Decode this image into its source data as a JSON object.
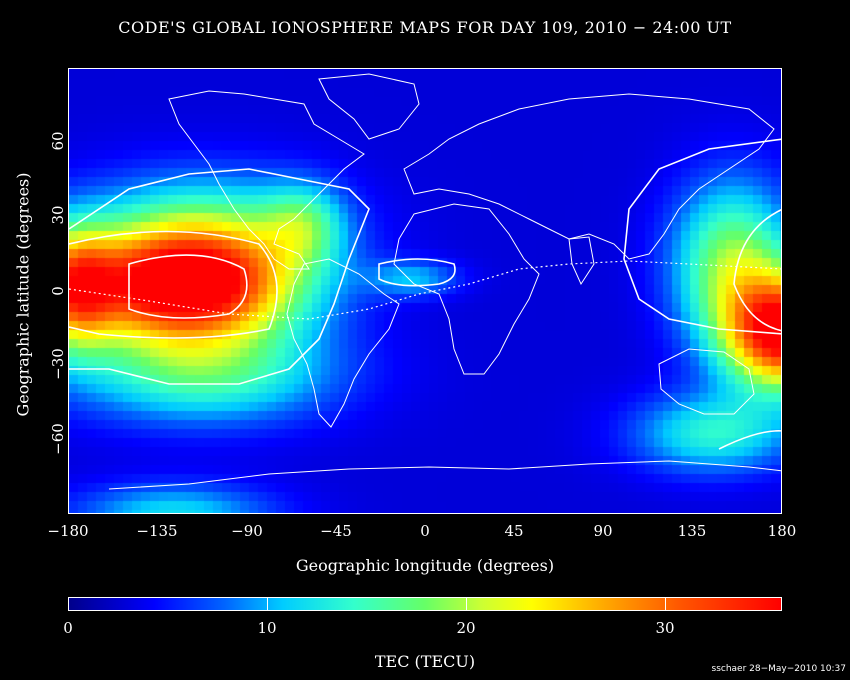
{
  "title": "CODE'S GLOBAL IONOSPHERE MAPS FOR DAY 109, 2010 − 24:00 UT",
  "x_axis": {
    "label": "Geographic longitude (degrees)",
    "ticks": [
      "−180",
      "−135",
      "−90",
      "−45",
      "0",
      "45",
      "90",
      "135",
      "180"
    ],
    "range": [
      -180,
      180
    ]
  },
  "y_axis": {
    "label": "Geographic latitude (degrees)",
    "ticks": [
      "60",
      "30",
      "0",
      "−30",
      "−60"
    ],
    "range": [
      -87.5,
      87.5
    ]
  },
  "colorbar": {
    "title": "TEC (TECU)",
    "ticks": [
      "0",
      "10",
      "20",
      "30"
    ],
    "range": [
      0,
      36
    ],
    "colors": [
      "#00008b",
      "#0000ff",
      "#00ccff",
      "#66ff66",
      "#ffff00",
      "#ff0000"
    ]
  },
  "credit": "sschaer 28−May−2010 10:37",
  "contour_color": "#ffffff"
}
